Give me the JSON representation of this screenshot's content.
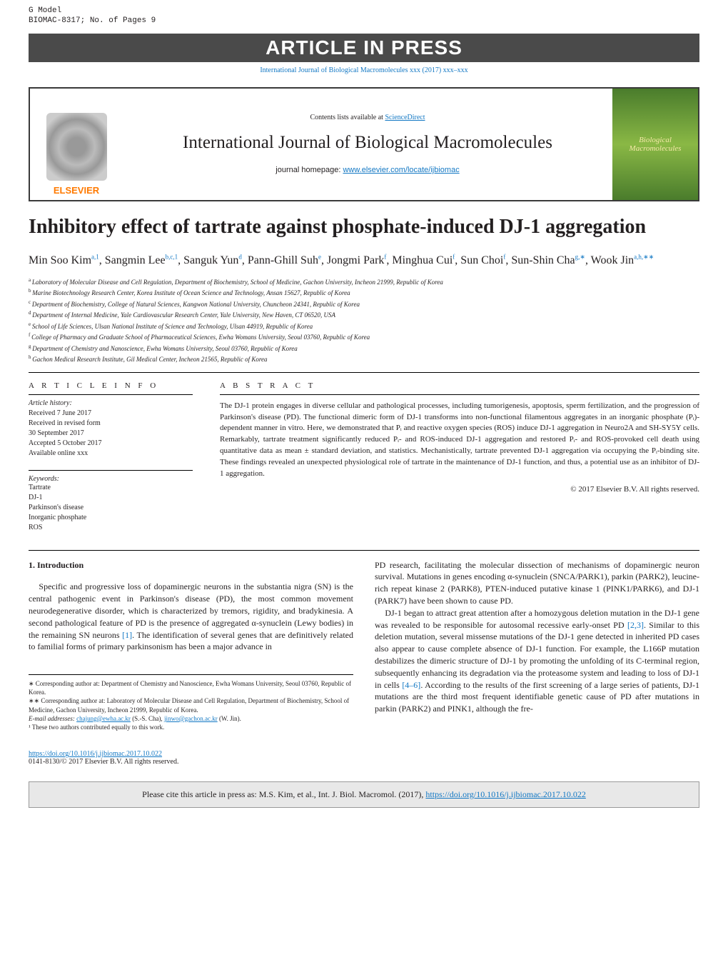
{
  "meta": {
    "g_model": "G Model",
    "biomac": "BIOMAC-8317;   No. of Pages 9",
    "banner": "ARTICLE IN PRESS",
    "cite_top": "International Journal of Biological Macromolecules xxx (2017) xxx–xxx",
    "sd_prefix": "Contents lists available at ",
    "sd_link": "ScienceDirect",
    "journal_name": "International Journal of Biological Macromolecules",
    "hp_prefix": "journal homepage: ",
    "hp_link": "www.elsevier.com/locate/ijbiomac",
    "elsevier": "ELSEVIER",
    "cover_text": "Biological Macromolecules"
  },
  "article": {
    "title": "Inhibitory effect of tartrate against phosphate-induced DJ-1 aggregation",
    "authors_html": [
      {
        "t": "Min Soo Kim",
        "s": "a,1"
      },
      {
        "t": ", Sangmin Lee",
        "s": "b,c,1"
      },
      {
        "t": ", Sanguk Yun",
        "s": "d"
      },
      {
        "t": ", Pann-Ghill Suh",
        "s": "e"
      },
      {
        "t": ", Jongmi Park",
        "s": "f"
      },
      {
        "t": ", Minghua Cui",
        "s": "f"
      },
      {
        "t": ", Sun Choi",
        "s": "f"
      },
      {
        "t": ", Sun-Shin Cha",
        "s": "g,∗"
      },
      {
        "t": ", Wook Jin",
        "s": "a,h,∗∗"
      }
    ],
    "affiliations": [
      {
        "s": "a",
        "t": "Laboratory of Molecular Disease and Cell Regulation, Department of Biochemistry, School of Medicine, Gachon University, Incheon 21999, Republic of Korea"
      },
      {
        "s": "b",
        "t": "Marine Biotechnology Research Center, Korea Institute of Ocean Science and Technology, Ansan 15627, Republic of Korea"
      },
      {
        "s": "c",
        "t": "Department of Biochemistry, College of Natural Sciences, Kangwon National University, Chuncheon 24341, Republic of Korea"
      },
      {
        "s": "d",
        "t": "Department of Internal Medicine, Yale Cardiovascular Research Center, Yale University, New Haven, CT 06520, USA"
      },
      {
        "s": "e",
        "t": "School of Life Sciences, Ulsan National Institute of Science and Technology, Ulsan 44919, Republic of Korea"
      },
      {
        "s": "f",
        "t": "College of Pharmacy and Graduate School of Pharmaceutical Sciences, Ewha Womans University, Seoul 03760, Republic of Korea"
      },
      {
        "s": "g",
        "t": "Department of Chemistry and Nanoscience, Ewha Womans University, Seoul 03760, Republic of Korea"
      },
      {
        "s": "h",
        "t": "Gachon Medical Research Institute, Gil Medical Center, Incheon 21565, Republic of Korea"
      }
    ]
  },
  "info": {
    "heading": "A R T I C L E   I N F O",
    "hist_head": "Article history:",
    "history": [
      "Received 7 June 2017",
      "Received in revised form",
      "30 September 2017",
      "Accepted 5 October 2017",
      "Available online xxx"
    ],
    "kw_head": "Keywords:",
    "keywords": [
      "Tartrate",
      "DJ-1",
      "Parkinson's disease",
      "Inorganic phosphate",
      "ROS"
    ]
  },
  "abstract": {
    "heading": "A B S T R A C T",
    "text": "The DJ-1 protein engages in diverse cellular and pathological processes, including tumorigenesis, apoptosis, sperm fertilization, and the progression of Parkinson's disease (PD). The functional dimeric form of DJ-1 transforms into non-functional filamentous aggregates in an inorganic phosphate (Pᵢ)-dependent manner in vitro. Here, we demonstrated that Pᵢ and reactive oxygen species (ROS) induce DJ-1 aggregation in Neuro2A and SH-SY5Y cells. Remarkably, tartrate treatment significantly reduced Pᵢ- and ROS-induced DJ-1 aggregation and restored Pᵢ- and ROS-provoked cell death using quantitative data as mean ± standard deviation, and statistics. Mechanistically, tartrate prevented DJ-1 aggregation via occupying the Pᵢ-binding site. These findings revealed an unexpected physiological role of tartrate in the maintenance of DJ-1 function, and thus, a potential use as an inhibitor of DJ-1 aggregation.",
    "copyright": "© 2017 Elsevier B.V. All rights reserved."
  },
  "intro": {
    "heading": "1. Introduction",
    "p1": "Specific and progressive loss of dopaminergic neurons in the substantia nigra (SN) is the central pathogenic event in Parkinson's disease (PD), the most common movement neurodegenerative disorder, which is characterized by tremors, rigidity, and bradykinesia. A second pathological feature of PD is the presence of aggregated α-synuclein (Lewy bodies) in the remaining SN neurons ",
    "ref1": "[1]",
    "p1b": ". The identification of several genes that are definitively related to familial forms of primary parkinsonism has been a major advance in",
    "p2": "PD research, facilitating the molecular dissection of mechanisms of dopaminergic neuron survival. Mutations in genes encoding α-synuclein (SNCA/PARK1), parkin (PARK2), leucine-rich repeat kinase 2 (PARK8), PTEN-induced putative kinase 1 (PINK1/PARK6), and DJ-1 (PARK7) have been shown to cause PD.",
    "p3a": "DJ-1 began to attract great attention after a homozygous deletion mutation in the DJ-1 gene was revealed to be responsible for autosomal recessive early-onset PD ",
    "ref2": "[2,3]",
    "p3b": ". Similar to this deletion mutation, several missense mutations of the DJ-1 gene detected in inherited PD cases also appear to cause complete absence of DJ-1 function. For example, the L166P mutation destabilizes the dimeric structure of DJ-1 by promoting the unfolding of its C-terminal region, subsequently enhancing its degradation via the proteasome system and leading to loss of DJ-1 in cells ",
    "ref3": "[4–6]",
    "p3c": ". According to the results of the first screening of a large series of patients, DJ-1 mutations are the third most frequent identifiable genetic cause of PD after mutations in parkin (PARK2) and PINK1, although the fre-"
  },
  "footnotes": {
    "f1": "∗ Corresponding author at: Department of Chemistry and Nanoscience, Ewha Womans University, Seoul 03760, Republic of Korea.",
    "f2": "∗∗ Corresponding author at: Laboratory of Molecular Disease and Cell Regulation, Department of Biochemistry, School of Medicine, Gachon University, Incheon 21999, Republic of Korea.",
    "email_prefix": "E-mail addresses: ",
    "email1": "chajung@ewha.ac.kr",
    "email1_who": " (S.-S. Cha), ",
    "email2": "jinwo@gachon.ac.kr",
    "email2_who": " (W. Jin).",
    "f3": "¹ These two authors contributed equally to this work."
  },
  "doi": {
    "link": "https://doi.org/10.1016/j.ijbiomac.2017.10.022",
    "issn": "0141-8130/© 2017 Elsevier B.V. All rights reserved."
  },
  "footer": {
    "prefix": "Please cite this article in press as: M.S. Kim, et al., Int. J. Biol. Macromol. (2017), ",
    "link": "https://doi.org/10.1016/j.ijbiomac.2017.10.022"
  },
  "colors": {
    "link": "#1378c4",
    "banner_bg": "#4a4a4a",
    "elsevier": "#ff7a00",
    "footer_bg": "#e8e8e8"
  }
}
